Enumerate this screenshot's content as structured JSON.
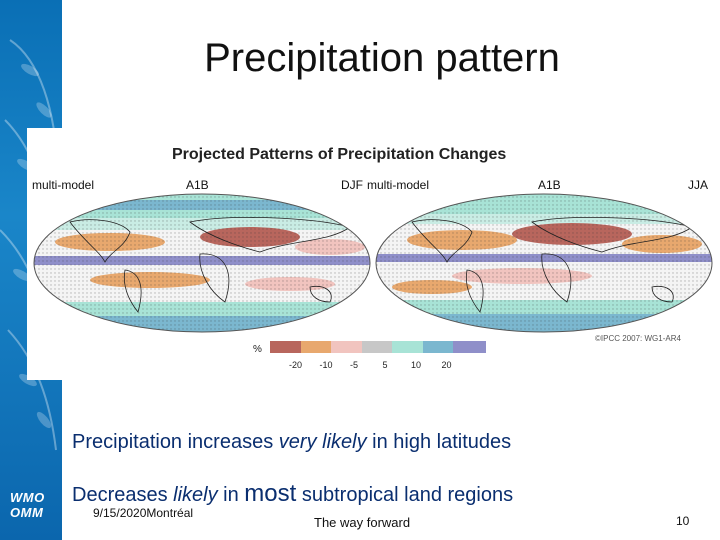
{
  "slide": {
    "title": "Precipitation pattern",
    "logo_line1": "WMO",
    "logo_line2": "OMM",
    "bullet1_a": "Precipitation increases ",
    "bullet1_em": "very likely",
    "bullet1_b": " in high latitudes",
    "bullet2_a": "Decreases ",
    "bullet2_em": "likely",
    "bullet2_b": " in ",
    "bullet2_big": "most",
    "bullet2_c": " subtropical land regions",
    "date": "9/15/2020Montréal",
    "footer_center": "The way forward",
    "page_number": "10"
  },
  "figure": {
    "title": "Projected Patterns of Precipitation Changes",
    "left_label": "multi-model",
    "left_scenario": "A1B",
    "left_season": "DJF",
    "right_label": "multi-model",
    "right_scenario": "A1B",
    "right_season": "JJA",
    "legend_unit": "%",
    "legend_colors": [
      "#b8665d",
      "#e8a86e",
      "#f1c4bf",
      "#c7c7c7",
      "#a8e3d6",
      "#7bb7cf",
      "#8f8fc9"
    ],
    "legend_ticks": [
      "-20",
      "-10",
      "-5",
      "5",
      "10",
      "20"
    ],
    "credit": "©IPCC 2007: WG1-AR4"
  }
}
